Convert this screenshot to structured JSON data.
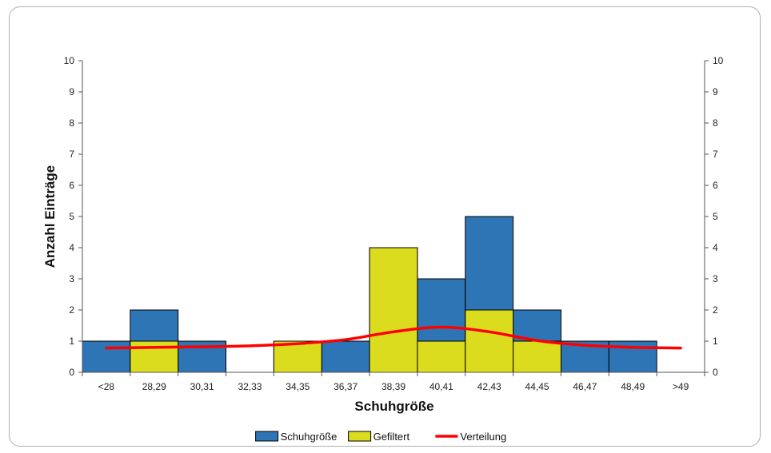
{
  "chart_data": {
    "type": "bar",
    "xlabel": "Schuhgröße",
    "ylabel": "Anzahl Einträge",
    "ylim": [
      0,
      10
    ],
    "yticks": [
      0,
      1,
      2,
      3,
      4,
      5,
      6,
      7,
      8,
      9,
      10
    ],
    "secondary_yticks": [
      0,
      1,
      2,
      3,
      4,
      5,
      6,
      7,
      8,
      9,
      10
    ],
    "categories": [
      "<28",
      "28,29",
      "30,31",
      "32,33",
      "34,35",
      "36,37",
      "38,39",
      "40,41",
      "42,43",
      "44,45",
      "46,47",
      "48,49",
      ">49"
    ],
    "series": [
      {
        "name": "Schuhgröße",
        "type": "bar",
        "color": "#2e75b6",
        "values": [
          1,
          2,
          1,
          0,
          1,
          1,
          4,
          3,
          5,
          2,
          1,
          1,
          0
        ]
      },
      {
        "name": "Gefiltert",
        "type": "bar",
        "color": "#dcdc1e",
        "values": [
          0,
          1,
          0,
          0,
          1,
          0,
          4,
          1,
          2,
          1,
          0,
          0,
          0
        ]
      },
      {
        "name": "Verteilung",
        "type": "line",
        "color": "#ff0000",
        "values": [
          0.78,
          0.8,
          0.82,
          0.85,
          0.92,
          1.05,
          1.3,
          1.45,
          1.3,
          1.02,
          0.87,
          0.8,
          0.78
        ]
      }
    ],
    "legend_position": "bottom",
    "grid": false
  }
}
